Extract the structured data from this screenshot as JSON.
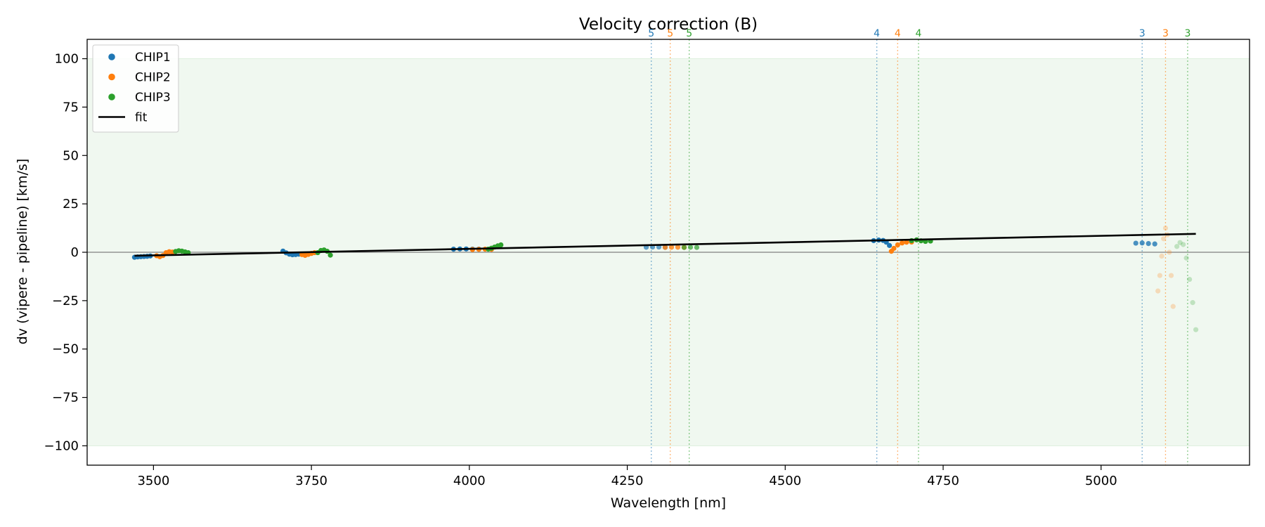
{
  "chart_data": {
    "type": "scatter",
    "title": "Velocity correction (B)",
    "xlabel": "Wavelength [nm]",
    "ylabel": "dv (vipere - pipeline) [km/s]",
    "xlim": [
      3395,
      5235
    ],
    "ylim": [
      -110,
      110
    ],
    "xticks": [
      3500,
      3750,
      4000,
      4250,
      4500,
      4750,
      5000
    ],
    "yticks": [
      -100,
      -75,
      -50,
      -25,
      0,
      25,
      50,
      75,
      100
    ],
    "shaded_band": [
      -100,
      100
    ],
    "zero_line": 0,
    "colors": {
      "CHIP1": "#1f77b4",
      "CHIP2": "#ff7f0e",
      "CHIP3": "#2ca02c",
      "fit": "#000000",
      "band": "#2ca02c"
    },
    "legend": {
      "location": "top-left",
      "entries": [
        {
          "label": "CHIP1",
          "kind": "marker",
          "color": "#1f77b4"
        },
        {
          "label": "CHIP2",
          "kind": "marker",
          "color": "#ff7f0e"
        },
        {
          "label": "CHIP3",
          "kind": "marker",
          "color": "#2ca02c"
        },
        {
          "label": "fit",
          "kind": "line",
          "color": "#000000"
        }
      ]
    },
    "fit": {
      "x": [
        3470,
        5150
      ],
      "y": [
        -1.8,
        9.5
      ]
    },
    "order_markers": [
      {
        "x": 4288,
        "label": "5",
        "color": "#1f77b4"
      },
      {
        "x": 4318,
        "label": "5",
        "color": "#ff7f0e"
      },
      {
        "x": 4348,
        "label": "5",
        "color": "#2ca02c"
      },
      {
        "x": 4645,
        "label": "4",
        "color": "#1f77b4"
      },
      {
        "x": 4678,
        "label": "4",
        "color": "#ff7f0e"
      },
      {
        "x": 4711,
        "label": "4",
        "color": "#2ca02c"
      },
      {
        "x": 5065,
        "label": "3",
        "color": "#1f77b4"
      },
      {
        "x": 5102,
        "label": "3",
        "color": "#ff7f0e"
      },
      {
        "x": 5137,
        "label": "3",
        "color": "#2ca02c"
      }
    ],
    "series": [
      {
        "name": "CHIP1",
        "segments": [
          {
            "alpha": 1,
            "x": [
              3470,
              3475,
              3480,
              3485,
              3490,
              3495
            ],
            "y": [
              -2.6,
              -2.4,
              -2.3,
              -2.2,
              -2.1,
              -1.9
            ]
          },
          {
            "alpha": 1,
            "x": [
              3705,
              3710,
              3715,
              3720,
              3725,
              3730
            ],
            "y": [
              0.6,
              -0.3,
              -1,
              -1.3,
              -1.2,
              -1
            ]
          },
          {
            "alpha": 1,
            "x": [
              3975,
              3985,
              3995,
              4005,
              4015
            ],
            "y": [
              1.6,
              1.7,
              1.7,
              1.6,
              1.6
            ]
          },
          {
            "alpha": 0.7,
            "x": [
              4280,
              4290,
              4300,
              4310
            ],
            "y": [
              2.6,
              2.7,
              2.7,
              2.6
            ]
          },
          {
            "alpha": 1,
            "x": [
              4640,
              4648,
              4655,
              4660,
              4665
            ],
            "y": [
              6,
              6.3,
              6.1,
              5.2,
              3.5
            ]
          },
          {
            "alpha": 0.8,
            "x": [
              5055,
              5065,
              5075,
              5085
            ],
            "y": [
              4.7,
              4.8,
              4.5,
              4.3
            ]
          }
        ]
      },
      {
        "name": "CHIP2",
        "segments": [
          {
            "alpha": 1,
            "x": [
              3505,
              3510,
              3515,
              3520,
              3525,
              3530
            ],
            "y": [
              -1.8,
              -2.3,
              -1.7,
              -0.2,
              0.3,
              0.1
            ]
          },
          {
            "alpha": 1,
            "x": [
              3735,
              3740,
              3745,
              3750,
              3755
            ],
            "y": [
              -1.2,
              -1.6,
              -1.1,
              -0.6,
              -0.2
            ]
          },
          {
            "alpha": 1,
            "x": [
              4005,
              4015,
              4025,
              4035
            ],
            "y": [
              1.4,
              1.5,
              1.6,
              1.5
            ]
          },
          {
            "alpha": 0.8,
            "x": [
              4310,
              4320,
              4330,
              4340
            ],
            "y": [
              2.5,
              2.6,
              2.6,
              2.5
            ]
          },
          {
            "alpha": 1,
            "x": [
              4668,
              4672,
              4678,
              4685,
              4692,
              4700
            ],
            "y": [
              0.5,
              2,
              3.8,
              4.8,
              5.2,
              5.3
            ]
          },
          {
            "alpha": 0.25,
            "x": [
              5090,
              5093,
              5096,
              5099,
              5102,
              5105,
              5108,
              5111,
              5114
            ],
            "y": [
              -20,
              -12,
              -2,
              7,
              12.5,
              9,
              0,
              -12,
              -28
            ]
          }
        ]
      },
      {
        "name": "CHIP3",
        "segments": [
          {
            "alpha": 1,
            "x": [
              3535,
              3540,
              3545,
              3550,
              3555
            ],
            "y": [
              0.4,
              0.8,
              0.6,
              0.2,
              -0.2
            ]
          },
          {
            "alpha": 1,
            "x": [
              3760,
              3765,
              3770,
              3775,
              3780
            ],
            "y": [
              -0.2,
              0.9,
              1.2,
              0.5,
              -1.5
            ]
          },
          {
            "alpha": 1,
            "x": [
              4030,
              4035,
              4040,
              4045,
              4050
            ],
            "y": [
              1.6,
              2.1,
              2.7,
              3.3,
              3.8
            ]
          },
          {
            "alpha": 0.7,
            "x": [
              4340,
              4350,
              4360
            ],
            "y": [
              2.5,
              2.6,
              2.5
            ]
          },
          {
            "alpha": 1,
            "x": [
              4700,
              4708,
              4715,
              4722,
              4730
            ],
            "y": [
              6,
              6.4,
              5.9,
              5.6,
              5.8
            ]
          },
          {
            "alpha": 0.25,
            "x": [
              5120,
              5125,
              5130,
              5135,
              5140,
              5145,
              5150
            ],
            "y": [
              3,
              5,
              4,
              -3,
              -14,
              -26,
              -40
            ]
          }
        ]
      }
    ]
  }
}
